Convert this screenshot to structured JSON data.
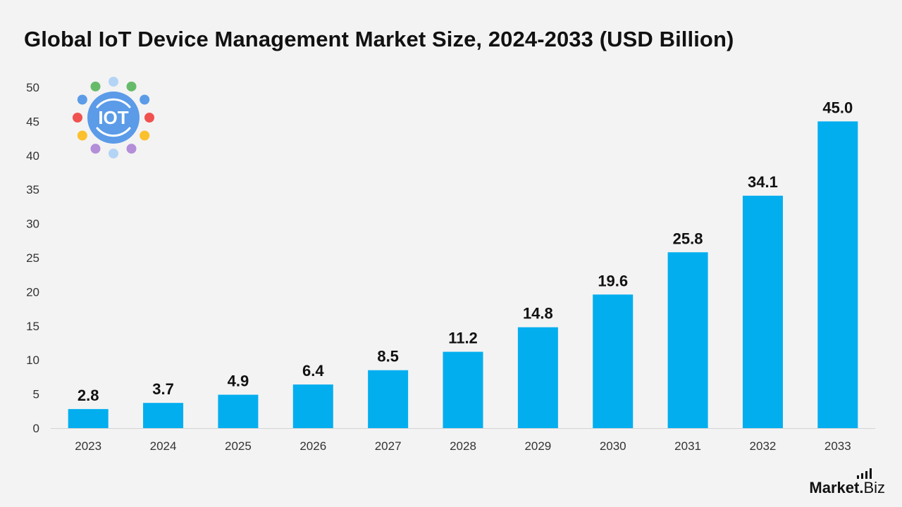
{
  "chart_data": {
    "type": "bar",
    "title": "Global IoT Device Management Market Size, 2024-2033 (USD Billion)",
    "xlabel": "",
    "ylabel": "",
    "categories": [
      "2023",
      "2024",
      "2025",
      "2026",
      "2027",
      "2028",
      "2029",
      "2030",
      "2031",
      "2032",
      "2033"
    ],
    "values": [
      2.8,
      3.7,
      4.9,
      6.4,
      8.5,
      11.2,
      14.8,
      19.6,
      25.8,
      34.1,
      45.0
    ],
    "value_labels": [
      "2.8",
      "3.7",
      "4.9",
      "6.4",
      "8.5",
      "11.2",
      "14.8",
      "19.6",
      "25.8",
      "34.1",
      "45.0"
    ],
    "ylim": [
      0,
      50
    ],
    "yticks": [
      0,
      5,
      10,
      15,
      20,
      25,
      30,
      35,
      40,
      45,
      50
    ],
    "grid": false,
    "bar_color": "#03aeef"
  },
  "logo": {
    "text": "IOT",
    "icon": "iot-logo-icon",
    "circle_color": "#5b9be8",
    "dot_colors": [
      "#b3d4f5",
      "#5b9be8",
      "#b48ed8",
      "#f0524f",
      "#66bb6a",
      "#fbc02d"
    ]
  },
  "brand": {
    "main": "Market",
    "dot": ".",
    "suffix": "Biz",
    "icon": "signal-bars-icon"
  }
}
